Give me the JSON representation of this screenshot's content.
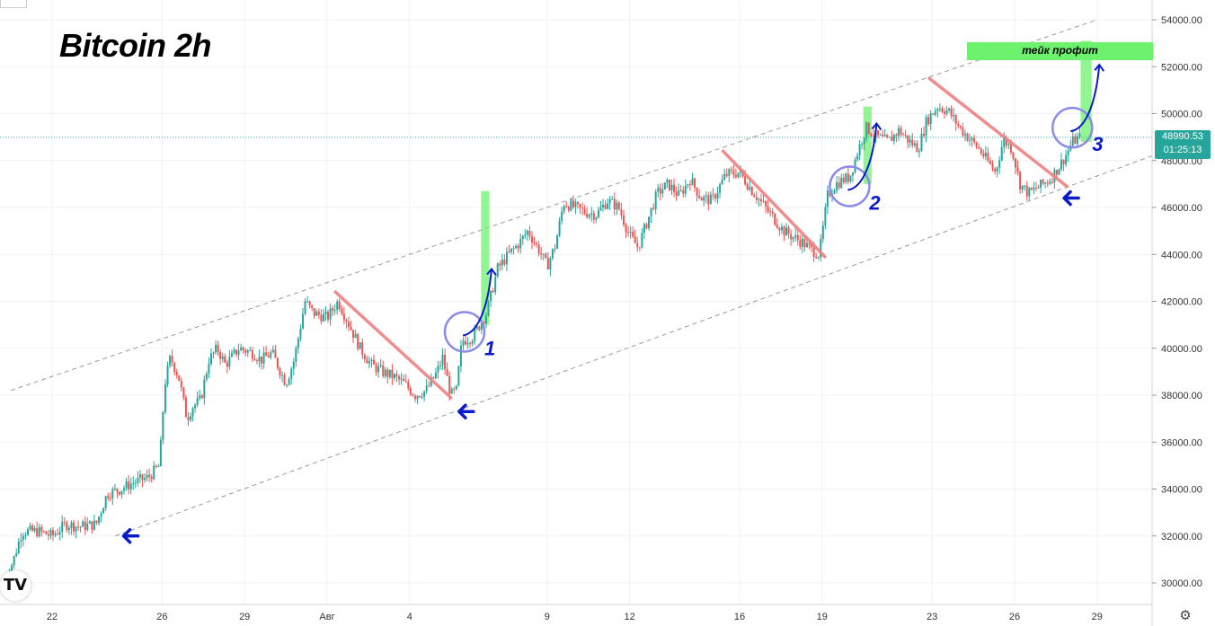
{
  "title": "Bitcoin 2h",
  "current_price": "48990.53",
  "countdown": "01:25:13",
  "take_profit_label": "тейк профит",
  "tradingview_logo": "TV",
  "settings_icon": "gear-icon",
  "colors": {
    "up": "#26a69a",
    "down": "#ef5350",
    "trendline": "#f08080",
    "channel": "#999999",
    "arrow": "#0a1acc",
    "circle": "#8c8ce8",
    "highlight": "#6cf26c",
    "price_line": "#26a69a"
  },
  "chart_data": {
    "type": "candlestick",
    "title": "Bitcoin 2h",
    "xlabel": "",
    "ylabel": "",
    "ylim": [
      29500,
      55000
    ],
    "y_ticks": [
      "30000.00",
      "32000.00",
      "34000.00",
      "36000.00",
      "38000.00",
      "40000.00",
      "42000.00",
      "44000.00",
      "46000.00",
      "48000.00",
      "50000.00",
      "52000.00",
      "54000.00"
    ],
    "x_ticks": [
      "22",
      "26",
      "29",
      "Авг",
      "4",
      "9",
      "12",
      "16",
      "19",
      "23",
      "26",
      "29"
    ],
    "x_tick_days": [
      22,
      26,
      29,
      32,
      35,
      40,
      43,
      47,
      50,
      54,
      57,
      60
    ],
    "grid": true,
    "close_path": [
      [
        20.2,
        29800
      ],
      [
        20.6,
        31000
      ],
      [
        20.9,
        32200
      ],
      [
        21.5,
        32200
      ],
      [
        22.0,
        32000
      ],
      [
        22.5,
        32500
      ],
      [
        23.0,
        32400
      ],
      [
        23.6,
        32500
      ],
      [
        24.0,
        33800
      ],
      [
        24.5,
        34000
      ],
      [
        25.0,
        34300
      ],
      [
        25.5,
        34500
      ],
      [
        25.9,
        35000
      ],
      [
        26.1,
        38500
      ],
      [
        26.3,
        39600
      ],
      [
        26.6,
        38800
      ],
      [
        26.9,
        37000
      ],
      [
        27.1,
        37500
      ],
      [
        27.4,
        37800
      ],
      [
        27.7,
        39500
      ],
      [
        28.0,
        40000
      ],
      [
        28.3,
        39300
      ],
      [
        28.8,
        40000
      ],
      [
        29.3,
        39800
      ],
      [
        29.6,
        39500
      ],
      [
        30.0,
        39800
      ],
      [
        30.5,
        38500
      ],
      [
        30.8,
        39500
      ],
      [
        31.2,
        42000
      ],
      [
        31.5,
        41500
      ],
      [
        32.0,
        41300
      ],
      [
        32.4,
        42000
      ],
      [
        32.8,
        41000
      ],
      [
        33.2,
        40000
      ],
      [
        33.6,
        39300
      ],
      [
        34.0,
        39000
      ],
      [
        34.4,
        38800
      ],
      [
        34.8,
        38500
      ],
      [
        35.2,
        38000
      ],
      [
        35.6,
        38200
      ],
      [
        36.0,
        39000
      ],
      [
        36.2,
        39600
      ],
      [
        36.5,
        38000
      ],
      [
        36.7,
        38200
      ],
      [
        36.9,
        40300
      ],
      [
        37.3,
        40500
      ],
      [
        37.8,
        41500
      ],
      [
        38.2,
        43400
      ],
      [
        38.6,
        44000
      ],
      [
        39.0,
        44500
      ],
      [
        39.3,
        45000
      ],
      [
        39.7,
        44200
      ],
      [
        40.0,
        43500
      ],
      [
        40.3,
        44400
      ],
      [
        40.6,
        46200
      ],
      [
        41.0,
        46000
      ],
      [
        41.4,
        45800
      ],
      [
        41.8,
        45700
      ],
      [
        42.2,
        46300
      ],
      [
        42.6,
        46000
      ],
      [
        43.0,
        44800
      ],
      [
        43.3,
        44300
      ],
      [
        43.7,
        45600
      ],
      [
        44.0,
        46600
      ],
      [
        44.4,
        47000
      ],
      [
        44.8,
        46500
      ],
      [
        45.2,
        47200
      ],
      [
        45.6,
        46400
      ],
      [
        46.0,
        46300
      ],
      [
        46.5,
        47400
      ],
      [
        47.0,
        47500
      ],
      [
        47.4,
        46800
      ],
      [
        47.8,
        46200
      ],
      [
        48.2,
        45600
      ],
      [
        48.6,
        45000
      ],
      [
        49.0,
        44700
      ],
      [
        49.3,
        44500
      ],
      [
        49.6,
        44200
      ],
      [
        49.9,
        44000
      ],
      [
        50.2,
        46500
      ],
      [
        50.5,
        47000
      ],
      [
        50.8,
        47200
      ],
      [
        51.0,
        47300
      ],
      [
        51.3,
        48400
      ],
      [
        51.6,
        49400
      ],
      [
        52.0,
        49000
      ],
      [
        52.4,
        48800
      ],
      [
        52.8,
        49300
      ],
      [
        53.1,
        48900
      ],
      [
        53.5,
        48500
      ],
      [
        53.8,
        49700
      ],
      [
        54.2,
        50300
      ],
      [
        54.6,
        50100
      ],
      [
        55.0,
        49400
      ],
      [
        55.3,
        49000
      ],
      [
        55.7,
        48500
      ],
      [
        56.0,
        48000
      ],
      [
        56.3,
        47500
      ],
      [
        56.6,
        48900
      ],
      [
        56.9,
        48500
      ],
      [
        57.2,
        47000
      ],
      [
        57.5,
        46600
      ],
      [
        57.9,
        46900
      ],
      [
        58.3,
        47200
      ],
      [
        58.7,
        47900
      ],
      [
        58.9,
        48300
      ],
      [
        59.1,
        48800
      ],
      [
        59.4,
        49000
      ]
    ],
    "channel_upper": [
      [
        20.5,
        38200
      ],
      [
        60.0,
        54000
      ]
    ],
    "channel_lower": [
      [
        24.3,
        32000
      ],
      [
        62.0,
        48200
      ]
    ],
    "trend_lines": [
      [
        [
          32.3,
          42400
        ],
        [
          36.5,
          37900
        ]
      ],
      [
        [
          46.4,
          48400
        ],
        [
          50.1,
          43900
        ]
      ],
      [
        [
          53.9,
          51500
        ],
        [
          58.9,
          46900
        ]
      ]
    ],
    "arrows_left": [
      [
        24.6,
        32000
      ],
      [
        36.8,
        37300
      ],
      [
        58.8,
        46400
      ]
    ],
    "circles": [
      [
        37.0,
        40700,
        "1"
      ],
      [
        51.0,
        46900,
        "2"
      ],
      [
        59.1,
        49400,
        "3"
      ]
    ],
    "breakout_zones": [
      [
        37.6,
        37.9,
        41000,
        46700
      ],
      [
        51.5,
        51.8,
        47000,
        50300
      ],
      [
        59.4,
        59.8,
        48800,
        53100
      ]
    ],
    "current_price": 48990.53
  }
}
